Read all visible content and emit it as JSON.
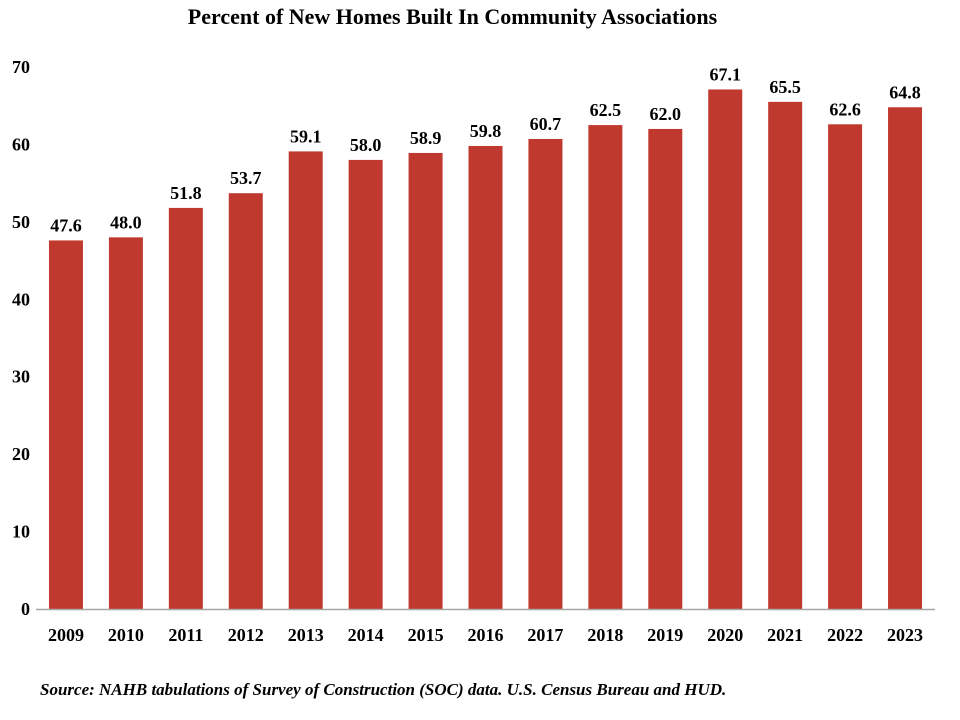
{
  "chart_data": {
    "type": "bar",
    "title": "Percent of New Homes Built In Community Associations",
    "xlabel": "",
    "ylabel": "",
    "categories": [
      "2009",
      "2010",
      "2011",
      "2012",
      "2013",
      "2014",
      "2015",
      "2016",
      "2017",
      "2018",
      "2019",
      "2020",
      "2021",
      "2022",
      "2023"
    ],
    "values": [
      47.6,
      48.0,
      51.8,
      53.7,
      59.1,
      58.0,
      58.9,
      59.8,
      60.7,
      62.5,
      62.0,
      67.1,
      65.5,
      62.6,
      64.8
    ],
    "data_labels": [
      "47.6",
      "48.0",
      "51.8",
      "53.7",
      "59.1",
      "58.0",
      "58.9",
      "59.8",
      "60.7",
      "62.5",
      "62.0",
      "67.1",
      "65.5",
      "62.6",
      "64.8"
    ],
    "ylim": [
      0,
      70
    ],
    "yticks": [
      0,
      10,
      20,
      30,
      40,
      50,
      60,
      70
    ],
    "ytick_labels": [
      "0",
      "10",
      "20",
      "30",
      "40",
      "50",
      "60",
      "70"
    ],
    "grid": false,
    "legend": "none",
    "bar_color": "#c0392f",
    "axis_color": "#a6a6a6",
    "source": "Source: NAHB tabulations of Survey of Construction (SOC) data. U.S. Census Bureau and HUD."
  }
}
